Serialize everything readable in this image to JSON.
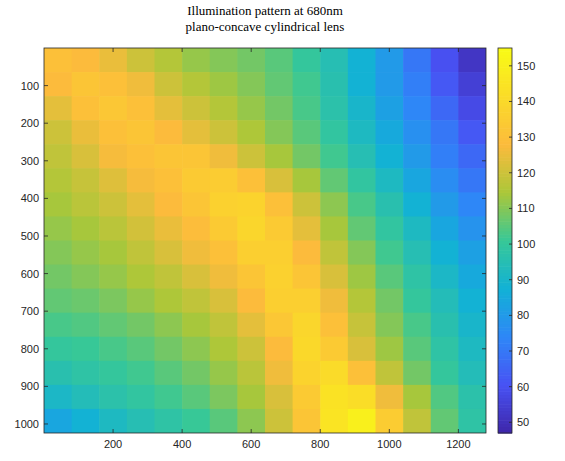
{
  "chart_data": {
    "type": "heatmap",
    "title": "Illumination pattern at 680nm",
    "subtitle": "plano-concave cylindrical lens",
    "x": [
      40,
      120,
      200,
      280,
      360,
      440,
      520,
      600,
      680,
      760,
      840,
      920,
      1000,
      1080,
      1160,
      1240
    ],
    "y": [
      32,
      96,
      160,
      224,
      288,
      352,
      416,
      480,
      544,
      608,
      672,
      736,
      800,
      864,
      928,
      992
    ],
    "values": [
      [
        130,
        128,
        125,
        120,
        116,
        112,
        110,
        108,
        105,
        100,
        95,
        88,
        80,
        70,
        60,
        52
      ],
      [
        128,
        132,
        130,
        126,
        120,
        116,
        113,
        110,
        106,
        102,
        96,
        88,
        80,
        72,
        62,
        55
      ],
      [
        124,
        130,
        133,
        130,
        124,
        120,
        116,
        112,
        108,
        103,
        97,
        90,
        82,
        74,
        66,
        58
      ],
      [
        120,
        125,
        130,
        132,
        128,
        124,
        120,
        115,
        110,
        105,
        99,
        92,
        85,
        77,
        70,
        62
      ],
      [
        118,
        122,
        127,
        130,
        132,
        132,
        126,
        120,
        114,
        108,
        102,
        95,
        88,
        80,
        72,
        66
      ],
      [
        116,
        119,
        123,
        127,
        130,
        134,
        135,
        130,
        122,
        114,
        106,
        99,
        92,
        84,
        76,
        70
      ],
      [
        114,
        117,
        120,
        124,
        128,
        132,
        137,
        138,
        130,
        120,
        111,
        103,
        96,
        88,
        80,
        74
      ],
      [
        112,
        114,
        117,
        121,
        125,
        129,
        134,
        139,
        134,
        124,
        114,
        106,
        99,
        92,
        84,
        78
      ],
      [
        110,
        112,
        114,
        118,
        122,
        126,
        130,
        136,
        136,
        128,
        118,
        110,
        102,
        95,
        88,
        82
      ],
      [
        108,
        110,
        112,
        115,
        118,
        122,
        126,
        132,
        137,
        132,
        122,
        113,
        105,
        98,
        91,
        85
      ],
      [
        106,
        107,
        109,
        112,
        115,
        118,
        122,
        128,
        136,
        136,
        126,
        116,
        108,
        100,
        94,
        88
      ],
      [
        103,
        104,
        106,
        108,
        111,
        114,
        118,
        124,
        133,
        139,
        130,
        119,
        110,
        103,
        96,
        90
      ],
      [
        100,
        101,
        103,
        105,
        108,
        111,
        115,
        120,
        128,
        140,
        134,
        122,
        113,
        105,
        98,
        92
      ],
      [
        96,
        98,
        100,
        102,
        105,
        108,
        112,
        117,
        126,
        138,
        141,
        130,
        118,
        108,
        100,
        94
      ],
      [
        91,
        94,
        97,
        99,
        102,
        105,
        109,
        114,
        122,
        134,
        144,
        142,
        126,
        114,
        104,
        97
      ],
      [
        84,
        88,
        92,
        95,
        98,
        101,
        105,
        111,
        120,
        132,
        145,
        150,
        135,
        118,
        106,
        98
      ]
    ],
    "xlim": [
      0,
      1280
    ],
    "ylim": [
      0,
      1024
    ],
    "xticks": [
      200,
      400,
      600,
      800,
      1000,
      1200
    ],
    "yticks": [
      100,
      200,
      300,
      400,
      500,
      600,
      700,
      800,
      900,
      1000
    ],
    "color_range": [
      47,
      155
    ],
    "color_ticks": [
      50,
      60,
      70,
      80,
      90,
      100,
      110,
      120,
      130,
      140,
      150
    ]
  }
}
